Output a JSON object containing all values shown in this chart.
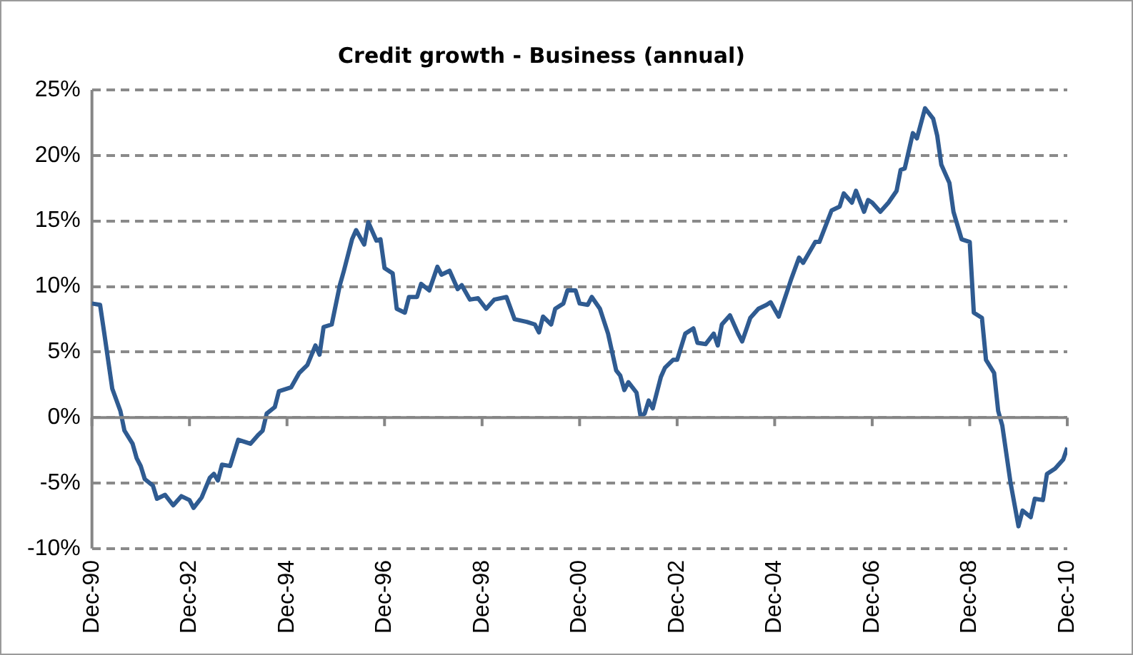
{
  "chart_data": {
    "type": "line",
    "title": "Credit growth - Business (annual)",
    "x": [
      "1990-12",
      "1991-02",
      "1991-03",
      "1991-05",
      "1991-07",
      "1991-08",
      "1991-10",
      "1991-11",
      "1991-12",
      "1992-01",
      "1992-03",
      "1992-04",
      "1992-06",
      "1992-08",
      "1992-10",
      "1992-12",
      "1993-01",
      "1993-03",
      "1993-05",
      "1993-06",
      "1993-07",
      "1993-08",
      "1993-10",
      "1993-12",
      "1994-03",
      "1994-05",
      "1994-06",
      "1994-07",
      "1994-09",
      "1994-10",
      "1995-01",
      "1995-03",
      "1995-05",
      "1995-07",
      "1995-08",
      "1995-09",
      "1995-11",
      "1996-01",
      "1996-02",
      "1996-04",
      "1996-05",
      "1996-07",
      "1996-08",
      "1996-10",
      "1996-11",
      "1996-12",
      "1997-02",
      "1997-03",
      "1997-05",
      "1997-06",
      "1997-08",
      "1997-09",
      "1997-11",
      "1998-01",
      "1998-02",
      "1998-04",
      "1998-06",
      "1998-07",
      "1998-09",
      "1998-11",
      "1999-01",
      "1999-03",
      "1999-06",
      "1999-08",
      "1999-11",
      "2000-01",
      "2000-02",
      "2000-03",
      "2000-05",
      "2000-06",
      "2000-08",
      "2000-09",
      "2000-11",
      "2000-12",
      "2001-02",
      "2001-03",
      "2001-05",
      "2001-07",
      "2001-09",
      "2001-10",
      "2001-11",
      "2001-12",
      "2002-02",
      "2002-03",
      "2002-04",
      "2002-05",
      "2002-06",
      "2002-08",
      "2002-09",
      "2002-11",
      "2002-12",
      "2003-02",
      "2003-04",
      "2003-05",
      "2003-07",
      "2003-09",
      "2003-10",
      "2003-11",
      "2004-01",
      "2004-03",
      "2004-04",
      "2004-06",
      "2004-08",
      "2004-10",
      "2004-11",
      "2005-01",
      "2005-04",
      "2005-06",
      "2005-07",
      "2005-10",
      "2005-11",
      "2006-02",
      "2006-04",
      "2006-05",
      "2006-07",
      "2006-08",
      "2006-10",
      "2006-11",
      "2006-12",
      "2007-02",
      "2007-04",
      "2007-06",
      "2007-07",
      "2007-08",
      "2007-10",
      "2007-11",
      "2008-01",
      "2008-03",
      "2008-04",
      "2008-05",
      "2008-07",
      "2008-08",
      "2008-10",
      "2008-12",
      "2009-01",
      "2009-03",
      "2009-04",
      "2009-06",
      "2009-07",
      "2009-08",
      "2009-10",
      "2009-12",
      "2010-01",
      "2010-03",
      "2010-04",
      "2010-06",
      "2010-07",
      "2010-09",
      "2010-11",
      "2010-12"
    ],
    "series": [
      {
        "color": "#2f5b91",
        "values": [
          8.7,
          8.6,
          6.5,
          2.2,
          0.5,
          -1.0,
          -2.0,
          -3.1,
          -3.7,
          -4.7,
          -5.2,
          -6.2,
          -5.9,
          -6.7,
          -6.0,
          -6.3,
          -6.9,
          -6.1,
          -4.6,
          -4.3,
          -4.8,
          -3.6,
          -3.7,
          -1.7,
          -2.0,
          -1.3,
          -1.0,
          0.3,
          0.8,
          2.0,
          2.3,
          3.4,
          4.0,
          5.5,
          4.8,
          6.9,
          7.1,
          10.1,
          11.2,
          13.6,
          14.3,
          13.2,
          14.9,
          13.5,
          13.6,
          11.4,
          11.0,
          8.3,
          8.0,
          9.2,
          9.2,
          10.2,
          9.7,
          11.5,
          10.9,
          11.2,
          9.8,
          10.1,
          9.0,
          9.1,
          8.3,
          9.0,
          9.2,
          7.5,
          7.3,
          7.1,
          6.5,
          7.7,
          7.1,
          8.3,
          8.7,
          9.7,
          9.7,
          8.7,
          8.6,
          9.2,
          8.3,
          6.4,
          3.6,
          3.2,
          2.1,
          2.7,
          1.9,
          0.1,
          0.3,
          1.3,
          0.7,
          3.1,
          3.8,
          4.4,
          4.4,
          6.4,
          6.8,
          5.7,
          5.6,
          6.4,
          5.5,
          7.1,
          7.8,
          6.4,
          5.8,
          7.6,
          8.3,
          8.6,
          8.8,
          7.7,
          10.5,
          12.2,
          11.8,
          13.4,
          13.4,
          15.8,
          16.1,
          17.1,
          16.4,
          17.3,
          15.7,
          16.6,
          16.4,
          15.7,
          16.4,
          17.3,
          18.9,
          19.0,
          21.7,
          21.3,
          23.6,
          22.8,
          21.5,
          19.3,
          17.9,
          15.7,
          13.6,
          13.4,
          8.0,
          7.6,
          4.4,
          3.4,
          0.5,
          -0.6,
          -4.9,
          -8.3,
          -7.1,
          -7.6,
          -6.2,
          -6.3,
          -4.3,
          -3.9,
          -3.2,
          -2.3
        ]
      }
    ],
    "xlim": [
      "1990-12",
      "2010-12"
    ],
    "xticks": [
      {
        "value": "1990-12",
        "label": "Dec-90"
      },
      {
        "value": "1992-12",
        "label": "Dec-92"
      },
      {
        "value": "1994-12",
        "label": "Dec-94"
      },
      {
        "value": "1996-12",
        "label": "Dec-96"
      },
      {
        "value": "1998-12",
        "label": "Dec-98"
      },
      {
        "value": "2000-12",
        "label": "Dec-00"
      },
      {
        "value": "2002-12",
        "label": "Dec-02"
      },
      {
        "value": "2004-12",
        "label": "Dec-04"
      },
      {
        "value": "2006-12",
        "label": "Dec-06"
      },
      {
        "value": "2008-12",
        "label": "Dec-08"
      },
      {
        "value": "2010-12",
        "label": "Dec-10"
      }
    ],
    "ylim": [
      -10,
      25
    ],
    "yticks": [
      {
        "value": -10,
        "label": "-10%"
      },
      {
        "value": -5,
        "label": "-5%"
      },
      {
        "value": 0,
        "label": "0%"
      },
      {
        "value": 5,
        "label": "5%"
      },
      {
        "value": 10,
        "label": "10%"
      },
      {
        "value": 15,
        "label": "15%"
      },
      {
        "value": 20,
        "label": "20%"
      },
      {
        "value": 25,
        "label": "25%"
      }
    ],
    "grid": "y",
    "legend": false,
    "marker": "none",
    "line_style": "solid"
  }
}
